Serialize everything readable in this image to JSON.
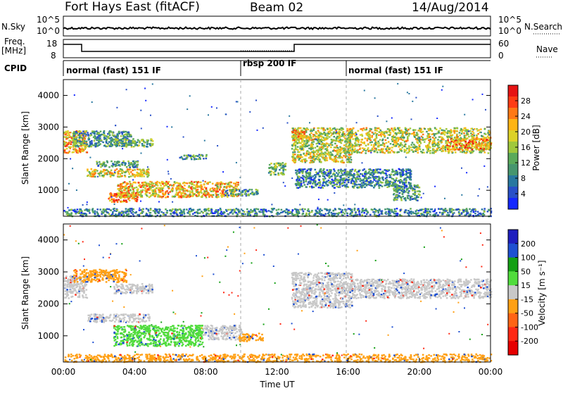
{
  "header": {
    "title": "Fort Hays East (fitACF)",
    "beam": "Beam 02",
    "date": "14/Aug/2014"
  },
  "left_labels": {
    "nsky": "N.Sky",
    "freq": "Freq.",
    "freq_unit": "[MHz]",
    "cpid": "CPID"
  },
  "right_labels": {
    "nsearch": "N.Search",
    "nave": "Nave"
  },
  "nsky_axis": {
    "left_ticks": [
      "10^5",
      "10^0"
    ],
    "right_ticks": [
      "10^5",
      "10^0"
    ]
  },
  "freq_axis": {
    "left_ticks": [
      "18",
      "8"
    ],
    "right_ticks": [
      "60",
      "0"
    ]
  },
  "cpid_segments": [
    {
      "label": "normal (fast) 151 IF",
      "start": 0,
      "end": 10
    },
    {
      "label": "rbsp 200 IF",
      "start": 10,
      "end": 16
    },
    {
      "label": "normal (fast) 151 IF",
      "start": 16,
      "end": 24
    }
  ],
  "x_axis": {
    "label": "Time UT",
    "ticks": [
      "00:00",
      "04:00",
      "08:00",
      "12:00",
      "16:00",
      "20:00",
      "00:00"
    ]
  },
  "chart_data": [
    {
      "type": "heatmap",
      "panel": "power",
      "ylabel": "Slant Range [km]",
      "xlabel": "Time UT",
      "xlim": [
        0,
        24
      ],
      "ylim": [
        180,
        4500
      ],
      "yticks": [
        "4000",
        "3000",
        "2000",
        "1000"
      ],
      "colorbar": {
        "label": "Power [dB]",
        "ticks": [
          "28",
          "24",
          "20",
          "16",
          "12",
          "8",
          "4"
        ],
        "colors": [
          "#1428ff",
          "#2850c8",
          "#2878a0",
          "#46966e",
          "#5aaa5a",
          "#a0c83c",
          "#dcd228",
          "#ffb414",
          "#ff7814",
          "#ff3c14",
          "#e61414"
        ]
      },
      "echo_regions": [
        {
          "t0": 0.0,
          "t1": 1.3,
          "r0": 2200,
          "r1": 2900,
          "level": 0.75
        },
        {
          "t0": 0.5,
          "t1": 3.8,
          "r0": 2400,
          "r1": 2900,
          "level": 0.35
        },
        {
          "t0": 2.8,
          "t1": 5.0,
          "r0": 2400,
          "r1": 2650,
          "level": 0.45
        },
        {
          "t0": 1.3,
          "t1": 4.8,
          "r0": 1450,
          "r1": 1700,
          "level": 0.65
        },
        {
          "t0": 1.8,
          "t1": 4.2,
          "r0": 1750,
          "r1": 1950,
          "level": 0.35
        },
        {
          "t0": 2.5,
          "t1": 4.2,
          "r0": 650,
          "r1": 950,
          "level": 0.85
        },
        {
          "t0": 3.0,
          "t1": 9.8,
          "r0": 800,
          "r1": 1300,
          "level": 0.72
        },
        {
          "t0": 9.0,
          "t1": 11.0,
          "r0": 850,
          "r1": 1050,
          "level": 0.35
        },
        {
          "t0": 6.5,
          "t1": 8.0,
          "r0": 2000,
          "r1": 2150,
          "level": 0.35
        },
        {
          "t0": 12.8,
          "t1": 16.2,
          "r0": 1900,
          "r1": 3000,
          "level": 0.6
        },
        {
          "t0": 12.8,
          "t1": 13.5,
          "r0": 2600,
          "r1": 3000,
          "level": 0.75
        },
        {
          "t0": 16.0,
          "t1": 24.0,
          "r0": 2200,
          "r1": 3000,
          "level": 0.6
        },
        {
          "t0": 21.5,
          "t1": 24.0,
          "r0": 2300,
          "r1": 2700,
          "level": 0.8
        },
        {
          "t0": 11.5,
          "t1": 12.5,
          "r0": 1500,
          "r1": 1900,
          "level": 0.45
        },
        {
          "t0": 13.0,
          "t1": 19.5,
          "r0": 1100,
          "r1": 1700,
          "level": 0.3
        },
        {
          "t0": 18.5,
          "t1": 20.0,
          "r0": 700,
          "r1": 1200,
          "level": 0.35
        },
        {
          "t0": 0.0,
          "t1": 24.0,
          "r0": 200,
          "r1": 450,
          "level": 0.3
        }
      ]
    },
    {
      "type": "heatmap",
      "panel": "velocity",
      "ylabel": "Slant Range [km]",
      "xlabel": "Time UT",
      "xlim": [
        0,
        24
      ],
      "ylim": [
        180,
        4500
      ],
      "yticks": [
        "4000",
        "3000",
        "2000",
        "1000"
      ],
      "colorbar": {
        "label": "Velocity [m s⁻¹]",
        "ticks": [
          "200",
          "100",
          "50",
          "15",
          "-15",
          "-50",
          "-100",
          "-200"
        ],
        "colors": [
          "#1e1ebe",
          "#1e50d2",
          "#14a014",
          "#50dc3c",
          "#c8c8c8",
          "#ffa014",
          "#ff6414",
          "#ff2814",
          "#e60000"
        ]
      },
      "echo_regions": [
        {
          "t0": 0.0,
          "t1": 1.3,
          "r0": 2200,
          "r1": 2900,
          "vel": "grey"
        },
        {
          "t0": 0.5,
          "t1": 3.5,
          "r0": 2700,
          "r1": 3100,
          "vel": "orange"
        },
        {
          "t0": 2.8,
          "t1": 5.0,
          "r0": 2350,
          "r1": 2650,
          "vel": "grey"
        },
        {
          "t0": 1.3,
          "t1": 4.8,
          "r0": 1450,
          "r1": 1700,
          "vel": "grey"
        },
        {
          "t0": 2.8,
          "t1": 7.8,
          "r0": 700,
          "r1": 1350,
          "vel": "green"
        },
        {
          "t0": 7.8,
          "t1": 10.0,
          "r0": 900,
          "r1": 1350,
          "vel": "grey"
        },
        {
          "t0": 9.8,
          "t1": 11.2,
          "r0": 850,
          "r1": 1100,
          "vel": "orange"
        },
        {
          "t0": 12.8,
          "t1": 16.2,
          "r0": 1900,
          "r1": 3000,
          "vel": "grey"
        },
        {
          "t0": 16.0,
          "t1": 24.0,
          "r0": 2200,
          "r1": 2800,
          "vel": "grey"
        },
        {
          "t0": 0.0,
          "t1": 24.0,
          "r0": 200,
          "r1": 450,
          "vel": "orange"
        }
      ]
    }
  ],
  "colors": {
    "axis": "#000000",
    "dashed_marker": "#aaaaaa",
    "background": "#ffffff"
  }
}
